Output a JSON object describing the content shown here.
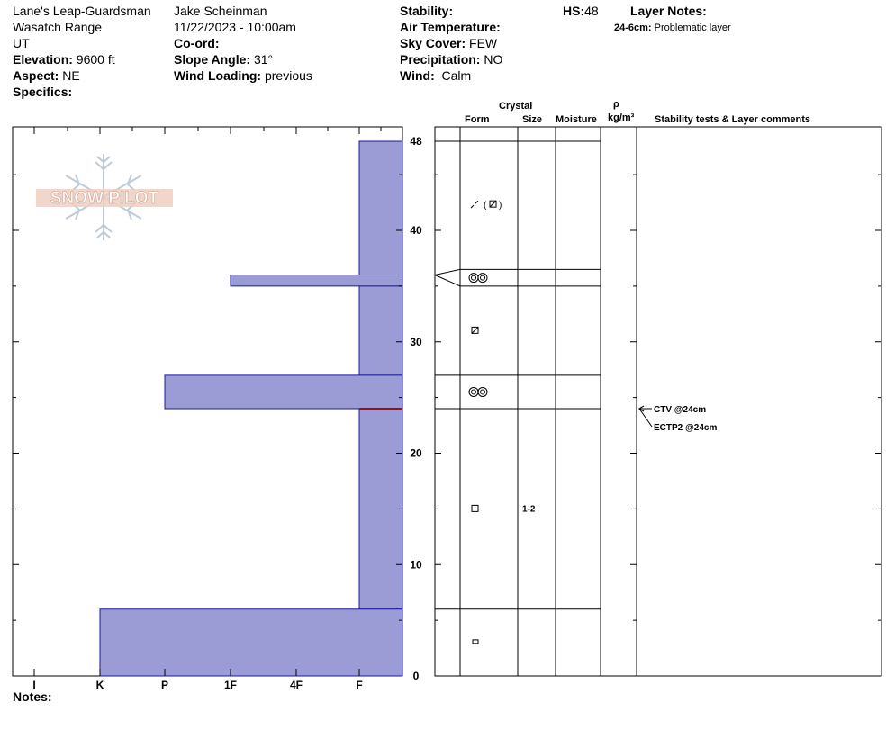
{
  "header": {
    "location": "Lane's Leap-Guardsman",
    "range": "Wasatch Range",
    "state": "UT",
    "elevation_label": "Elevation:",
    "elevation": "9600 ft",
    "aspect_label": "Aspect:",
    "aspect": "NE",
    "specifics_label": "Specifics:",
    "observer": "Jake Scheinman",
    "datetime": "11/22/2023 - 10:00am",
    "coord_label": "Co-ord:",
    "slope_label": "Slope Angle:",
    "slope": "31°",
    "wind_loading_label": "Wind Loading:",
    "wind_loading": "previous",
    "stability_label": "Stability:",
    "air_temp_label": "Air Temperature:",
    "sky_label": "Sky Cover:",
    "sky": "FEW",
    "precip_label": "Precipitation:",
    "precip": "NO",
    "wind_label": "Wind:",
    "wind": "Calm",
    "hs_label": "HS:",
    "hs": "48",
    "layer_notes_label": "Layer Notes:",
    "layer_note_range": "24-6cm:",
    "layer_note_text": "Problematic layer"
  },
  "logo": {
    "text": "SNOW PILOT"
  },
  "columns": {
    "crystal": "Crystal",
    "form": "Form",
    "size": "Size",
    "moisture": "Moisture",
    "rho": "ρ",
    "density": "kg/m³",
    "stability": "Stability tests & Layer comments"
  },
  "notes_label": "Notes:",
  "colors": {
    "hardness_fill": "#9b9bd6",
    "hardness_edge": "#1a1aa0",
    "weak_layer": "#a01010"
  },
  "chart_data": {
    "type": "bar",
    "title": "",
    "hardness_scale": [
      "I",
      "K",
      "P",
      "1F",
      "4F",
      "F"
    ],
    "height_ticks": [
      0,
      10,
      20,
      30,
      40,
      48
    ],
    "ylim": [
      0,
      48
    ],
    "total_depth_cm": 48,
    "layers": [
      {
        "top": 48,
        "bottom": 36,
        "hardness": "F"
      },
      {
        "top": 36,
        "bottom": 35,
        "hardness": "1F"
      },
      {
        "top": 35,
        "bottom": 27,
        "hardness": "F"
      },
      {
        "top": 27,
        "bottom": 24,
        "hardness": "P"
      },
      {
        "top": 24,
        "bottom": 6,
        "hardness": "F"
      },
      {
        "top": 6,
        "bottom": 0,
        "hardness": "K"
      }
    ],
    "weak_layer_cm": 24,
    "grain_rows": [
      {
        "top": 48,
        "bottom": 36.5,
        "form": "DF (FC)",
        "size": ""
      },
      {
        "top": 36.5,
        "bottom": 35,
        "form": "SH",
        "size": ""
      },
      {
        "top": 35,
        "bottom": 27,
        "form": "FC",
        "size": ""
      },
      {
        "top": 27,
        "bottom": 24,
        "form": "SH",
        "size": ""
      },
      {
        "top": 24,
        "bottom": 6,
        "form": "FC",
        "size": "1-2"
      },
      {
        "top": 6,
        "bottom": 0,
        "form": "MF",
        "size": ""
      }
    ],
    "stability_tests": [
      {
        "text": "CTV @24cm",
        "depth": 24
      },
      {
        "text": "ECTP2 @24cm",
        "depth": 24
      }
    ]
  }
}
